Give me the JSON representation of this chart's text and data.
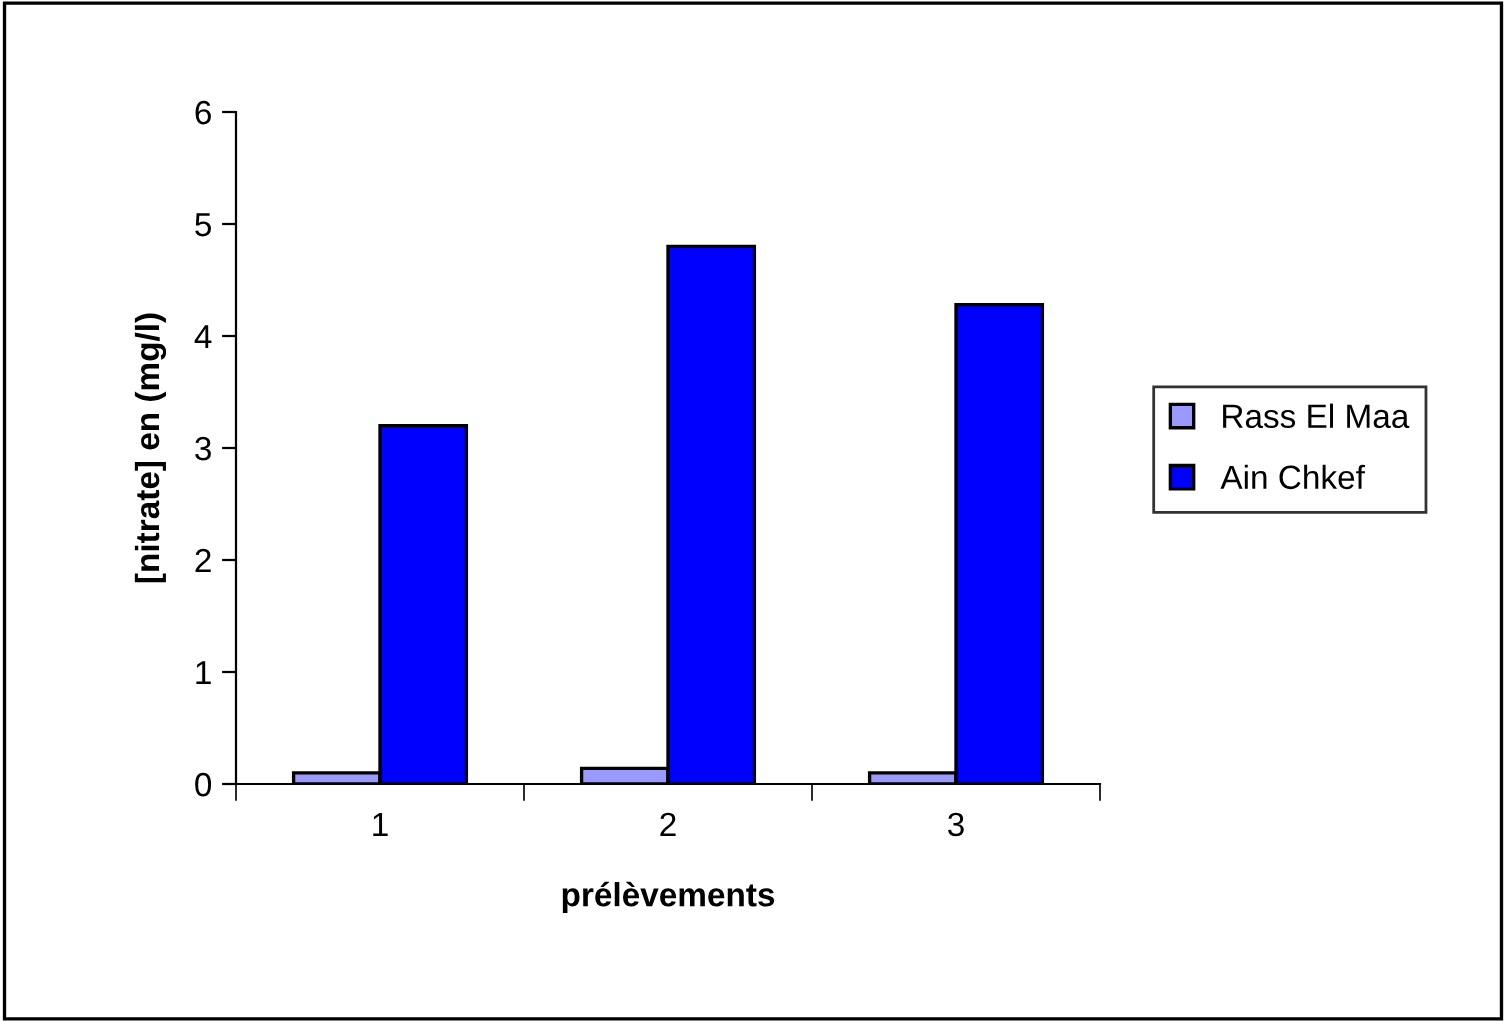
{
  "chart_data": {
    "type": "bar",
    "xlabel": "prélèvements",
    "ylabel": "[nitrate] en (mg/l)",
    "categories": [
      "1",
      "2",
      "3"
    ],
    "series": [
      {
        "name": "Rass El Maa",
        "color": "#9999ff",
        "values": [
          0.1,
          0.14,
          0.1
        ]
      },
      {
        "name": "Ain Chkef",
        "color": "#0000ff",
        "values": [
          3.2,
          4.8,
          4.28
        ]
      }
    ],
    "ylim": [
      0,
      6
    ],
    "yticks": [
      0,
      1,
      2,
      3,
      4,
      5,
      6
    ],
    "grid": false,
    "legend": "right"
  }
}
